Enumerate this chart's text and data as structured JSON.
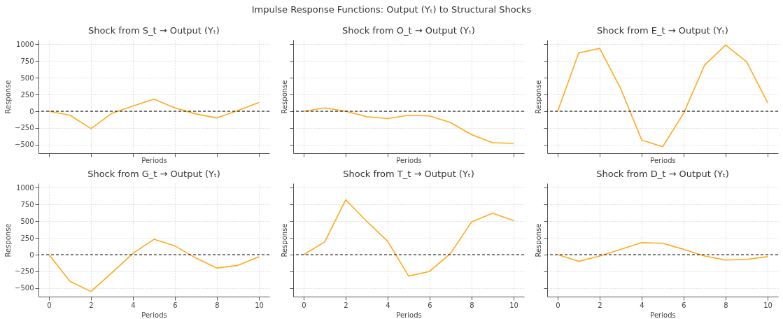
{
  "chart_data": [
    {
      "type": "line",
      "title": "Shock from S_t → Output (Yₜ)",
      "annotations": [
        "Impulse Response Functions: Output (Yₜ) to Structural Shocks"
      ],
      "xlabel": "Periods",
      "ylabel": "Response",
      "x": [
        0,
        1,
        2,
        3,
        4,
        5,
        6,
        7,
        8,
        9,
        10
      ],
      "values": [
        0,
        -60,
        -260,
        -30,
        80,
        180,
        50,
        -40,
        -100,
        10,
        130
      ],
      "color": "#ffaa1d",
      "xlim": [
        -0.5,
        10.5
      ],
      "ylim": [
        -627,
        1067
      ],
      "xticks": [
        0,
        2,
        4,
        6,
        8,
        10
      ],
      "yticks": [
        -500,
        -250,
        0,
        250,
        500,
        750,
        1000
      ],
      "grid": true,
      "tick_labels": "y",
      "ref_lines": [
        {
          "axis": "y",
          "value": 0,
          "color": "#000000",
          "line_style": "dashed"
        }
      ]
    },
    {
      "type": "line",
      "title": "Shock from O_t → Output (Yₜ)",
      "xlabel": "Periods",
      "ylabel": "Response",
      "x": [
        0,
        1,
        2,
        3,
        4,
        5,
        6,
        7,
        8,
        9,
        10
      ],
      "values": [
        0,
        50,
        0,
        -80,
        -110,
        -60,
        -70,
        -170,
        -350,
        -470,
        -480
      ],
      "color": "#ffaa1d",
      "xlim": [
        -0.5,
        10.5
      ],
      "ylim": [
        -627,
        1067
      ],
      "xticks": [
        0,
        2,
        4,
        6,
        8,
        10
      ],
      "yticks": [
        -500,
        -250,
        0,
        250,
        500,
        750,
        1000
      ],
      "grid": true,
      "tick_labels": false,
      "ref_lines": [
        {
          "axis": "y",
          "value": 0,
          "color": "#000000",
          "line_style": "dashed"
        }
      ]
    },
    {
      "type": "line",
      "title": "Shock from E_t → Output (Yₜ)",
      "xlabel": "Periods",
      "ylabel": "Response",
      "x": [
        0,
        1,
        2,
        3,
        4,
        5,
        6,
        7,
        8,
        9,
        10
      ],
      "values": [
        0,
        870,
        940,
        340,
        -430,
        -530,
        -30,
        690,
        990,
        740,
        130
      ],
      "color": "#ffaa1d",
      "xlim": [
        -0.5,
        10.5
      ],
      "ylim": [
        -627,
        1067
      ],
      "xticks": [
        0,
        2,
        4,
        6,
        8,
        10
      ],
      "yticks": [
        -500,
        -250,
        0,
        250,
        500,
        750,
        1000
      ],
      "grid": true,
      "tick_labels": false,
      "ref_lines": [
        {
          "axis": "y",
          "value": 0,
          "color": "#000000",
          "line_style": "dashed"
        }
      ]
    },
    {
      "type": "line",
      "title": "Shock from G_t → Output (Yₜ)",
      "xlabel": "Periods",
      "ylabel": "Response",
      "x": [
        0,
        1,
        2,
        3,
        4,
        5,
        6,
        7,
        8,
        9,
        10
      ],
      "values": [
        0,
        -400,
        -550,
        -270,
        20,
        230,
        130,
        -50,
        -200,
        -160,
        -30
      ],
      "color": "#ffaa1d",
      "xlim": [
        -0.5,
        10.5
      ],
      "ylim": [
        -627,
        1067
      ],
      "xticks": [
        0,
        2,
        4,
        6,
        8,
        10
      ],
      "yticks": [
        -500,
        -250,
        0,
        250,
        500,
        750,
        1000
      ],
      "grid": true,
      "ref_lines": [
        {
          "axis": "y",
          "value": 0,
          "color": "#000000",
          "line_style": "dashed"
        }
      ]
    },
    {
      "type": "line",
      "title": "Shock from T_t → Output (Yₜ)",
      "xlabel": "Periods",
      "ylabel": "Response",
      "x": [
        0,
        1,
        2,
        3,
        4,
        5,
        6,
        7,
        8,
        9,
        10
      ],
      "values": [
        0,
        190,
        820,
        500,
        200,
        -320,
        -250,
        20,
        490,
        620,
        510
      ],
      "color": "#ffaa1d",
      "xlim": [
        -0.5,
        10.5
      ],
      "ylim": [
        -627,
        1067
      ],
      "xticks": [
        0,
        2,
        4,
        6,
        8,
        10
      ],
      "yticks": [
        -500,
        -250,
        0,
        250,
        500,
        750,
        1000
      ],
      "grid": true,
      "tick_labels": "x",
      "ref_lines": [
        {
          "axis": "y",
          "value": 0,
          "color": "#000000",
          "line_style": "dashed"
        }
      ]
    },
    {
      "type": "line",
      "title": "Shock from D_t → Output (Yₜ)",
      "xlabel": "Periods",
      "ylabel": "Response",
      "x": [
        0,
        1,
        2,
        3,
        4,
        5,
        6,
        7,
        8,
        9,
        10
      ],
      "values": [
        0,
        -100,
        -20,
        80,
        180,
        170,
        80,
        -20,
        -80,
        -70,
        -30
      ],
      "color": "#ffaa1d",
      "xlim": [
        -0.5,
        10.5
      ],
      "ylim": [
        -627,
        1067
      ],
      "xticks": [
        0,
        2,
        4,
        6,
        8,
        10
      ],
      "yticks": [
        -500,
        -250,
        0,
        250,
        500,
        750,
        1000
      ],
      "grid": true,
      "tick_labels": "x",
      "ref_lines": [
        {
          "axis": "y",
          "value": 0,
          "color": "#000000",
          "line_style": "dashed"
        }
      ]
    }
  ]
}
